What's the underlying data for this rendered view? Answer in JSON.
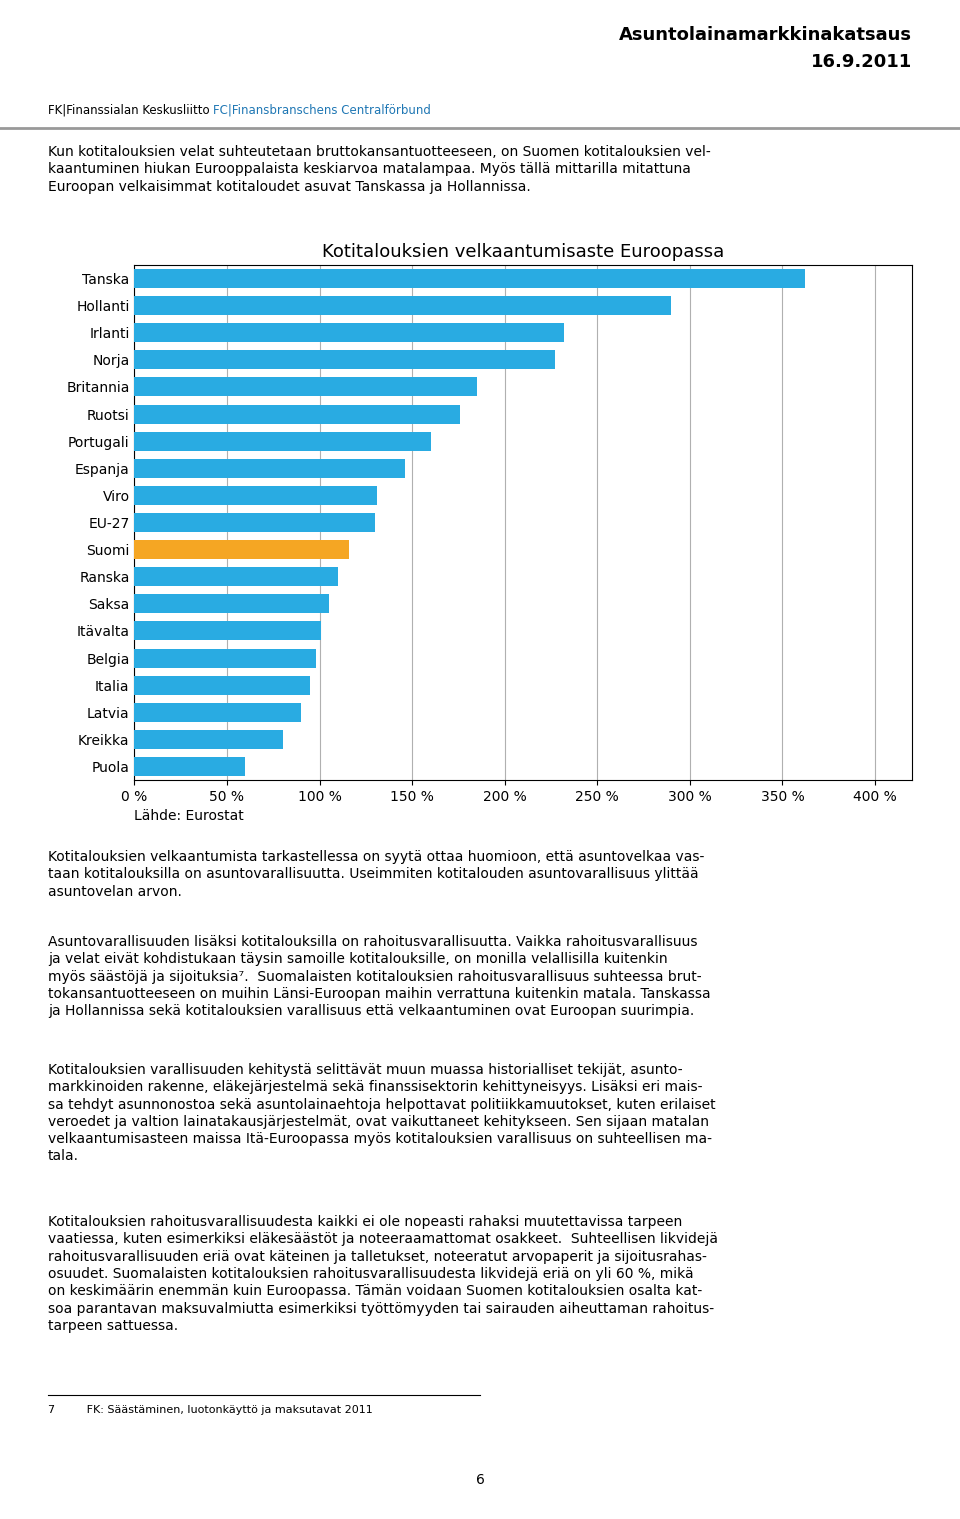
{
  "chart_data": {
    "type": "bar",
    "orientation": "horizontal",
    "title": "Kotitalouksien velkaantumisaste Euroopassa",
    "categories": [
      "Tanska",
      "Hollanti",
      "Irlanti",
      "Norja",
      "Britannia",
      "Ruotsi",
      "Portugali",
      "Espanja",
      "Viro",
      "EU-27",
      "Suomi",
      "Ranska",
      "Saksa",
      "Itävalta",
      "Belgia",
      "Italia",
      "Latvia",
      "Kreikka",
      "Puola"
    ],
    "values": [
      362,
      290,
      232,
      227,
      185,
      176,
      160,
      146,
      131,
      130,
      116,
      110,
      105,
      101,
      98,
      95,
      90,
      80,
      60
    ],
    "colors": [
      "#29ABE2",
      "#29ABE2",
      "#29ABE2",
      "#29ABE2",
      "#29ABE2",
      "#29ABE2",
      "#29ABE2",
      "#29ABE2",
      "#29ABE2",
      "#29ABE2",
      "#F5A623",
      "#29ABE2",
      "#29ABE2",
      "#29ABE2",
      "#29ABE2",
      "#29ABE2",
      "#29ABE2",
      "#29ABE2",
      "#29ABE2"
    ],
    "xlabel": "Lähde: Eurostat",
    "xlim": [
      0,
      420
    ],
    "xticks": [
      {
        "value": 0,
        "label": "0 %"
      },
      {
        "value": 50,
        "label": "50 %"
      },
      {
        "value": 100,
        "label": "100 %"
      },
      {
        "value": 150,
        "label": "150 %"
      },
      {
        "value": 200,
        "label": "200 %"
      },
      {
        "value": 250,
        "label": "250 %"
      },
      {
        "value": 300,
        "label": "300 %"
      },
      {
        "value": 350,
        "label": "350 %"
      },
      {
        "value": 400,
        "label": "400 %"
      }
    ],
    "grid": true,
    "annotations": [
      "Asuntolainamarkkinakatsaus",
      "16.9.2011",
      "FK|Finanssialan Keskusliitto ",
      "FC|Finansbranschens Centralförbund",
      "Kun kotitalouksien velat suhteutetaan bruttokansantuotteeseen, on Suomen kotitalouksien vel-\nkaantuminen hiukan Eurooppalaista keskiarvoa matalampaa. Myös tällä mittarilla mitattuna\nEuroopan velkaisimmat kotitaloudet asuvat Tanskassa ja Hollannissa.",
      "Kotitalouksien velkaantumista tarkastellessa on syytä ottaa huomioon, että asuntovelkaa vas-\ntaan kotitalouksilla on asuntovarallisuutta. Useimmiten kotitalouden asuntovarallisuus ylittää\nasuntovelan arvon.",
      "Asuntovarallisuuden lisäksi kotitalouksilla on rahoitusvarallisuutta. Vaikka rahoitusvarallisuus\nja velat eivät kohdistukaan täysin samoille kotitalouksille, on monilla velallisilla kuitenkin\nmyös säästöjä ja sijoituksia⁷.  Suomalaisten kotitalouksien rahoitusvarallisuus suhteessa brut-\ntokansantuotteeseen on muihin Länsi-Euroopan maihin verrattuna kuitenkin matala. Tanskassa\nja Hollannissa sekä kotitalouksien varallisuus että velkaantuminen ovat Euroopan suurimpia.",
      "Kotitalouksien varallisuuden kehitystä selittävät muun muassa historialliset tekijät, asunto-\nmarkkinoiden rakenne, eläkejärjestelmä sekä finanssisektorin kehittyneisyys. Lisäksi eri mais-\nsa tehdyt asunnonostoa sekä asuntolainaehtoja helpottavat politiikkamuutokset, kuten erilaiset\nveroedet ja valtion lainatakausjärjestelmät, ovat vaikuttaneet kehitykseen. Sen sijaan matalan\nvelkaantumisasteen maissa Itä-Euroopassa myös kotitalouksien varallisuus on suhteellisen ma-\ntala.",
      "Kotitalouksien rahoitusvarallisuudesta kaikki ei ole nopeasti rahaksi muutettavissa tarpeen\nvaatiessa, kuten esimerkiksi eläkesäästöt ja noteeraamattomat osakkeet.  Suhteellisen likvidejä\nrahoitusvarallisuuden eriä ovat käteinen ja talletukset, noteeratut arvopaperit ja sijoitusrahas-\nosuudet. Suomalaisten kotitalouksien rahoitusvarallisuudesta likvidejä eriä on yli 60 %, mikä\non keskimäärin enemmän kuin Euroopassa. Tämän voidaan Suomen kotitalouksien osalta kat-\nsoa parantavan maksuvalmiutta esimerkiksi työttömyyden tai sairauden aiheuttaman rahoitus-\ntarpeen sattuessa.",
      "7         FK: Säästäminen, luotonkäyttö ja maksutavat 2011",
      "6"
    ]
  }
}
